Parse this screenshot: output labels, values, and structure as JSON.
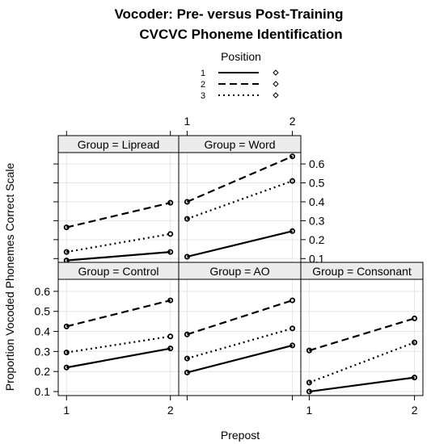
{
  "chart_data": {
    "type": "line",
    "title": [
      "Vocoder: Pre- versus Post-Training",
      "CVCVC Phoneme Identification"
    ],
    "xlabel": "Prepost",
    "ylabel": "Proportion Vocoded Phonemes Correct Scale",
    "x": [
      1,
      2
    ],
    "xticks": [
      "1",
      "2"
    ],
    "ylim": [
      0.08,
      0.66
    ],
    "yticks": [
      0.1,
      0.2,
      0.3,
      0.4,
      0.5,
      0.6
    ],
    "legend": {
      "title": "Position",
      "entries": [
        "1",
        "2",
        "3"
      ],
      "styles": [
        "solid",
        "dashed",
        "dotted"
      ],
      "placement": "top-center"
    },
    "panels": [
      {
        "label": "Group = Lipread",
        "series": [
          {
            "name": "1",
            "values": [
              0.09,
              0.135
            ]
          },
          {
            "name": "2",
            "values": [
              0.265,
              0.395
            ]
          },
          {
            "name": "3",
            "values": [
              0.135,
              0.23
            ]
          }
        ]
      },
      {
        "label": "Group = Word",
        "series": [
          {
            "name": "1",
            "values": [
              0.11,
              0.245
            ]
          },
          {
            "name": "2",
            "values": [
              0.4,
              0.64
            ]
          },
          {
            "name": "3",
            "values": [
              0.31,
              0.51
            ]
          }
        ]
      },
      {
        "label": "Group = Control",
        "series": [
          {
            "name": "1",
            "values": [
              0.22,
              0.315
            ]
          },
          {
            "name": "2",
            "values": [
              0.425,
              0.555
            ]
          },
          {
            "name": "3",
            "values": [
              0.295,
              0.375
            ]
          }
        ]
      },
      {
        "label": "Group = AO",
        "series": [
          {
            "name": "1",
            "values": [
              0.195,
              0.33
            ]
          },
          {
            "name": "2",
            "values": [
              0.385,
              0.555
            ]
          },
          {
            "name": "3",
            "values": [
              0.265,
              0.415
            ]
          }
        ]
      },
      {
        "label": "Group = Consonant",
        "series": [
          {
            "name": "1",
            "values": [
              0.1,
              0.17
            ]
          },
          {
            "name": "2",
            "values": [
              0.305,
              0.465
            ]
          },
          {
            "name": "3",
            "values": [
              0.145,
              0.345
            ]
          }
        ]
      }
    ]
  }
}
